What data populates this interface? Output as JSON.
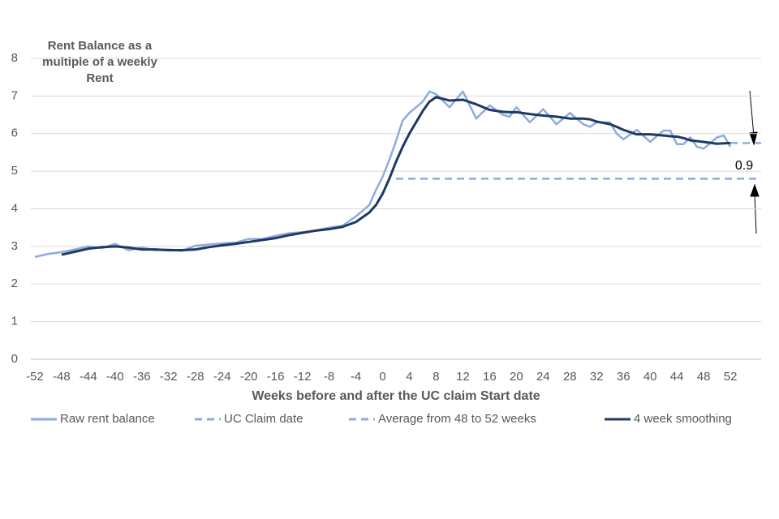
{
  "chart_data": {
    "type": "line",
    "y_label": [
      "Rent Balance as a",
      "multiple of a weekly",
      "Rent"
    ],
    "x_label": "Weeks before and after the UC claim Start date",
    "xlim": [
      -52.6,
      56.6
    ],
    "ylim": [
      0,
      8
    ],
    "xticks": [
      -52,
      -48,
      -44,
      -40,
      -36,
      -32,
      -28,
      -24,
      -20,
      -16,
      -12,
      -8,
      -4,
      0,
      4,
      8,
      12,
      16,
      20,
      24,
      28,
      32,
      36,
      40,
      44,
      48,
      52
    ],
    "yticks": [
      0,
      1,
      2,
      3,
      4,
      5,
      6,
      7,
      8
    ],
    "grid": true,
    "annotation": "0.9",
    "series": [
      {
        "name": "Raw rent balance",
        "color": "#8faadc",
        "dash": false,
        "x": [
          -52,
          -50,
          -48,
          -46,
          -44,
          -42,
          -40,
          -38,
          -36,
          -34,
          -32,
          -30,
          -28,
          -26,
          -24,
          -22,
          -20,
          -18,
          -16,
          -14,
          -12,
          -10,
          -8,
          -6,
          -4,
          -2,
          -1,
          0,
          1,
          2,
          3,
          4,
          6,
          7,
          8,
          10,
          12,
          14,
          16,
          18,
          19,
          20,
          22,
          24,
          26,
          28,
          30,
          31,
          32,
          34,
          35,
          36,
          38,
          40,
          42,
          43,
          44,
          45,
          46,
          47,
          48,
          50,
          51,
          52
        ],
        "values": [
          2.72,
          2.8,
          2.85,
          2.92,
          3.0,
          2.95,
          3.07,
          2.9,
          2.97,
          2.9,
          2.92,
          2.88,
          3.02,
          3.05,
          3.08,
          3.1,
          3.2,
          3.2,
          3.28,
          3.35,
          3.38,
          3.42,
          3.5,
          3.55,
          3.8,
          4.1,
          4.5,
          4.85,
          5.3,
          5.8,
          6.35,
          6.55,
          6.85,
          7.12,
          7.05,
          6.7,
          7.12,
          6.4,
          6.75,
          6.5,
          6.45,
          6.7,
          6.3,
          6.65,
          6.25,
          6.55,
          6.25,
          6.18,
          6.3,
          6.3,
          6.0,
          5.85,
          6.1,
          5.78,
          6.08,
          6.08,
          5.72,
          5.72,
          5.9,
          5.65,
          5.6,
          5.9,
          5.95,
          5.65
        ]
      },
      {
        "name": "UC Claim date",
        "color": "#8faadc",
        "dash": true,
        "x": [
          2,
          56.6
        ],
        "values": [
          4.8,
          4.8
        ]
      },
      {
        "name": "Average from 48 to 52 weeks",
        "color": "#8faadc",
        "dash": true,
        "x": [
          52,
          56.6
        ],
        "values": [
          5.75,
          5.75
        ]
      },
      {
        "name": "4 week smoothing",
        "color": "#1f3864",
        "dash": false,
        "x": [
          -48,
          -46,
          -44,
          -42,
          -40,
          -38,
          -36,
          -34,
          -32,
          -30,
          -28,
          -26,
          -24,
          -22,
          -20,
          -18,
          -16,
          -14,
          -12,
          -10,
          -8,
          -6,
          -4,
          -2,
          -1,
          0,
          1,
          2,
          3,
          4,
          6,
          7,
          8,
          10,
          12,
          14,
          16,
          18,
          19,
          20,
          22,
          24,
          26,
          28,
          30,
          31,
          32,
          34,
          35,
          36,
          38,
          40,
          42,
          43,
          44,
          45,
          46,
          47,
          48,
          50,
          51,
          52
        ],
        "values": [
          2.78,
          2.86,
          2.94,
          2.98,
          3.0,
          2.97,
          2.92,
          2.92,
          2.9,
          2.9,
          2.92,
          2.98,
          3.03,
          3.07,
          3.12,
          3.17,
          3.22,
          3.3,
          3.36,
          3.42,
          3.46,
          3.52,
          3.65,
          3.9,
          4.1,
          4.4,
          4.8,
          5.25,
          5.65,
          6.0,
          6.6,
          6.85,
          6.97,
          6.88,
          6.9,
          6.78,
          6.63,
          6.58,
          6.57,
          6.57,
          6.52,
          6.48,
          6.45,
          6.4,
          6.4,
          6.38,
          6.32,
          6.25,
          6.18,
          6.1,
          5.98,
          5.98,
          5.95,
          5.93,
          5.92,
          5.88,
          5.82,
          5.8,
          5.78,
          5.73,
          5.74,
          5.75
        ]
      }
    ]
  }
}
